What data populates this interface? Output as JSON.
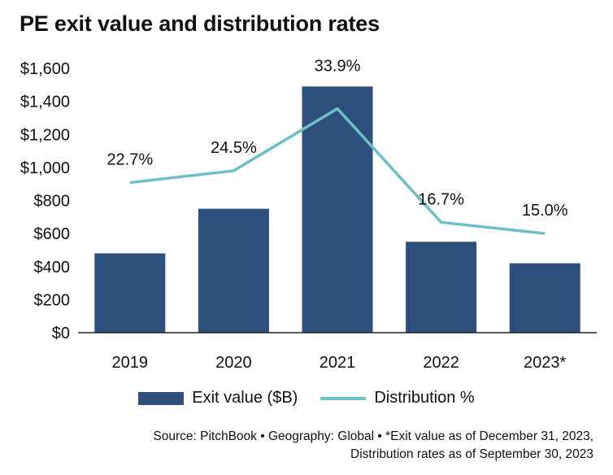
{
  "chart_data": {
    "type": "bar",
    "title": "PE exit value and distribution rates",
    "categories": [
      "2019",
      "2020",
      "2021",
      "2022",
      "2023*"
    ],
    "series": [
      {
        "name": "Exit value ($B)",
        "type": "bar",
        "values": [
          480,
          750,
          1490,
          550,
          420
        ],
        "color": "#2c4f7c"
      },
      {
        "name": "Distribution %",
        "type": "line",
        "values": [
          22.7,
          24.5,
          33.9,
          16.7,
          15.0
        ],
        "labels": [
          "22.7%",
          "24.5%",
          "33.9%",
          "16.7%",
          "15.0%"
        ],
        "color": "#6cc0c6"
      }
    ],
    "yticks": [
      "$0",
      "$200",
      "$400",
      "$600",
      "$800",
      "$1,000",
      "$1,200",
      "$1,400",
      "$1,600"
    ],
    "ylim": [
      0,
      1600
    ],
    "xlabel": "",
    "ylabel": "",
    "grid": false,
    "legend": "bottom"
  },
  "footnote": {
    "line1": "Source: PitchBook  •  Geography: Global  •  *Exit value as of December 31, 2023,",
    "line2": "Distribution rates as of September 30, 2023"
  }
}
